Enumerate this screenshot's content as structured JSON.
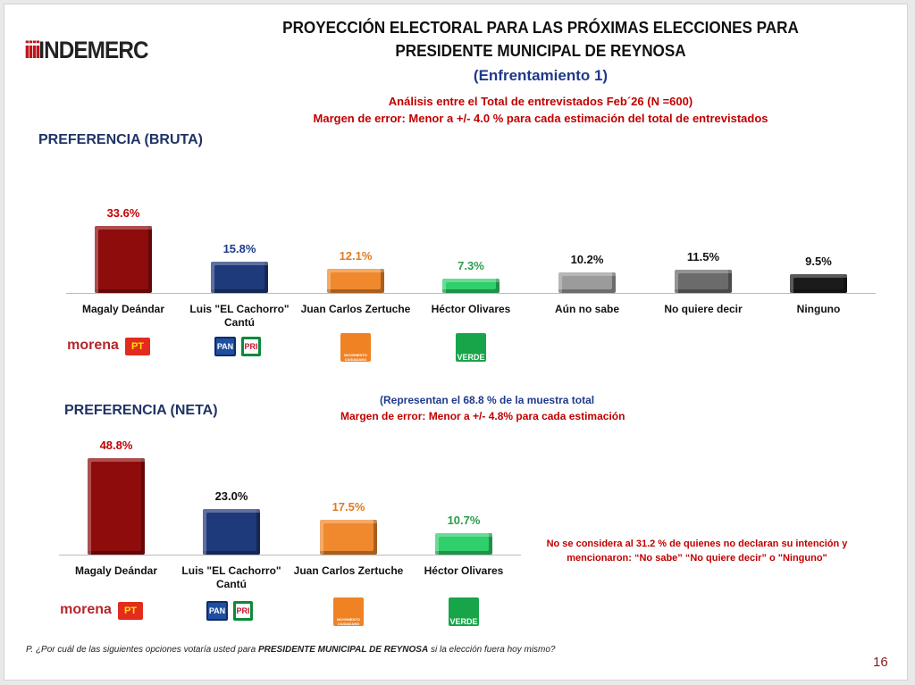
{
  "logo": {
    "bars": "iiii",
    "text": "INDEMERC"
  },
  "header": {
    "title_line1": "PROYECCIÓN ELECTORAL PARA LAS PRÓXIMAS ELECCIONES PARA",
    "title_line2": "PRESIDENTE MUNICIPAL DE REYNOSA",
    "subtitle": "(Enfrentamiento 1)",
    "analysis": "Análisis entre el Total de entrevistados Feb´26 (N =600)",
    "margin": "Margen de error: Menor a +/- 4.0 %  para cada estimación del total de entrevistados"
  },
  "parties": {
    "morena": "morena",
    "pt": "PT",
    "pan": "PAN",
    "pri": "PRI",
    "mc": "MOVIMIENTO CIUDADANO",
    "verde": "VERDE"
  },
  "chart_data": [
    {
      "type": "bar",
      "title": "PREFERENCIA (BRUTA)",
      "categories": [
        "Magaly Deándar",
        "Luis \"EL Cachorro\" Cantú",
        "Juan Carlos Zertuche",
        "Héctor Olivares",
        "Aún no sabe",
        "No quiere decir",
        "Ninguno"
      ],
      "values": [
        33.6,
        15.8,
        12.1,
        7.3,
        10.2,
        11.5,
        9.5
      ],
      "labels": [
        "33.6%",
        "15.8%",
        "12.1%",
        "7.3%",
        "10.2%",
        "11.5%",
        "9.5%"
      ],
      "colors": [
        "#8e0c0c",
        "#1f3a7a",
        "#f0892e",
        "#2fcf6c",
        "#9b9b9b",
        "#6b6b6b",
        "#1b1b1b"
      ],
      "label_colors": [
        "#c00000",
        "#1f3a8a",
        "#e07b20",
        "#2a9d4a",
        "#111111",
        "#111111",
        "#111111"
      ]
    },
    {
      "type": "bar",
      "title": "PREFERENCIA (NETA)",
      "categories": [
        "Magaly Deándar",
        "Luis \"EL Cachorro\" Cantú",
        "Juan Carlos Zertuche",
        "Héctor Olivares"
      ],
      "values": [
        48.8,
        23.0,
        17.5,
        10.7
      ],
      "labels": [
        "48.8%",
        "23.0%",
        "17.5%",
        "10.7%"
      ],
      "colors": [
        "#8e0c0c",
        "#1f3a7a",
        "#f0892e",
        "#2fcf6c"
      ],
      "label_colors": [
        "#c00000",
        "#111111",
        "#e07b20",
        "#2a9d4a"
      ]
    }
  ],
  "neta_info": {
    "represent": "(Representan el  68.8 % de la muestra total",
    "margin": "Margen de error: Menor a +/- 4.8%  para cada estimación",
    "excluded_line1": "No se considera al 31.2 % de  quienes no declaran su intención  y",
    "excluded_line2": "mencionaron:   “No sabe” “No quiere decir” o \"Ninguno\""
  },
  "footer": {
    "question_pre": "P. ¿Por cuál de las siguientes opciones votaría usted para ",
    "question_bold": "PRESIDENTE MUNICIPAL DE REYNOSA",
    "question_post": "  si la elección fuera hoy mismo?",
    "page": "16"
  }
}
